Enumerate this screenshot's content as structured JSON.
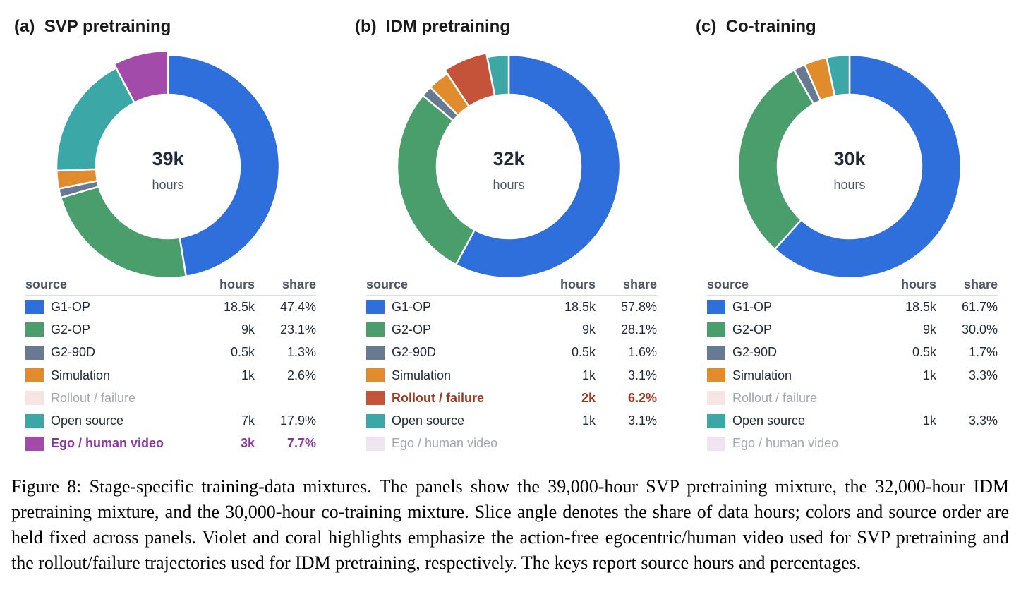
{
  "chart_data": [
    {
      "type": "pie",
      "panel_label": "(a)",
      "title": "SVP pretraining",
      "center_value": "39k",
      "center_unit": "hours",
      "legend_headers": {
        "source": "source",
        "hours": "hours",
        "share": "share"
      },
      "slices": [
        {
          "source": "G1-OP",
          "hours": "18.5k",
          "share": "47.4%",
          "value": 47.4,
          "color": "#2e6fdb",
          "state": "normal"
        },
        {
          "source": "G2-OP",
          "hours": "9k",
          "share": "23.1%",
          "value": 23.1,
          "color": "#4a9e6b",
          "state": "normal"
        },
        {
          "source": "G2-90D",
          "hours": "0.5k",
          "share": "1.3%",
          "value": 1.3,
          "color": "#687a91",
          "state": "normal"
        },
        {
          "source": "Simulation",
          "hours": "1k",
          "share": "2.6%",
          "value": 2.6,
          "color": "#e08c2c",
          "state": "normal"
        },
        {
          "source": "Rollout / failure",
          "hours": "",
          "share": "",
          "value": 0,
          "color": "#c4533a",
          "state": "dim"
        },
        {
          "source": "Open source",
          "hours": "7k",
          "share": "17.9%",
          "value": 17.9,
          "color": "#3ba7a6",
          "state": "normal"
        },
        {
          "source": "Ego / human video",
          "hours": "3k",
          "share": "7.7%",
          "value": 7.7,
          "color": "#a24bab",
          "state": "highlight"
        }
      ]
    },
    {
      "type": "pie",
      "panel_label": "(b)",
      "title": "IDM pretraining",
      "center_value": "32k",
      "center_unit": "hours",
      "legend_headers": {
        "source": "source",
        "hours": "hours",
        "share": "share"
      },
      "slices": [
        {
          "source": "G1-OP",
          "hours": "18.5k",
          "share": "57.8%",
          "value": 57.8,
          "color": "#2e6fdb",
          "state": "normal"
        },
        {
          "source": "G2-OP",
          "hours": "9k",
          "share": "28.1%",
          "value": 28.1,
          "color": "#4a9e6b",
          "state": "normal"
        },
        {
          "source": "G2-90D",
          "hours": "0.5k",
          "share": "1.6%",
          "value": 1.6,
          "color": "#687a91",
          "state": "normal"
        },
        {
          "source": "Simulation",
          "hours": "1k",
          "share": "3.1%",
          "value": 3.1,
          "color": "#e08c2c",
          "state": "normal"
        },
        {
          "source": "Rollout / failure",
          "hours": "2k",
          "share": "6.2%",
          "value": 6.2,
          "color": "#c4533a",
          "state": "highlight"
        },
        {
          "source": "Open source",
          "hours": "1k",
          "share": "3.1%",
          "value": 3.1,
          "color": "#3ba7a6",
          "state": "normal"
        },
        {
          "source": "Ego / human video",
          "hours": "",
          "share": "",
          "value": 0,
          "color": "#a24bab",
          "state": "dim"
        }
      ]
    },
    {
      "type": "pie",
      "panel_label": "(c)",
      "title": "Co-training",
      "center_value": "30k",
      "center_unit": "hours",
      "legend_headers": {
        "source": "source",
        "hours": "hours",
        "share": "share"
      },
      "slices": [
        {
          "source": "G1-OP",
          "hours": "18.5k",
          "share": "61.7%",
          "value": 61.7,
          "color": "#2e6fdb",
          "state": "normal"
        },
        {
          "source": "G2-OP",
          "hours": "9k",
          "share": "30.0%",
          "value": 30.0,
          "color": "#4a9e6b",
          "state": "normal"
        },
        {
          "source": "G2-90D",
          "hours": "0.5k",
          "share": "1.7%",
          "value": 1.7,
          "color": "#687a91",
          "state": "normal"
        },
        {
          "source": "Simulation",
          "hours": "1k",
          "share": "3.3%",
          "value": 3.3,
          "color": "#e08c2c",
          "state": "normal"
        },
        {
          "source": "Rollout / failure",
          "hours": "",
          "share": "",
          "value": 0,
          "color": "#c4533a",
          "state": "dim"
        },
        {
          "source": "Open source",
          "hours": "1k",
          "share": "3.3%",
          "value": 3.3,
          "color": "#3ba7a6",
          "state": "normal"
        },
        {
          "source": "Ego / human video",
          "hours": "",
          "share": "",
          "value": 0,
          "color": "#a24bab",
          "state": "dim"
        }
      ]
    }
  ],
  "caption": "Figure 8: Stage-specific training-data mixtures. The panels show the 39,000-hour SVP pretraining mixture, the 32,000-hour IDM pretraining mixture, and the 30,000-hour co-training mixture. Slice angle denotes the share of data hours; colors and source order are held fixed across panels. Violet and coral highlights emphasize the action-free egocentric/human video used for SVP pretraining and the rollout/failure trajectories used for IDM pretraining, respectively. The keys report source hours and percentages."
}
